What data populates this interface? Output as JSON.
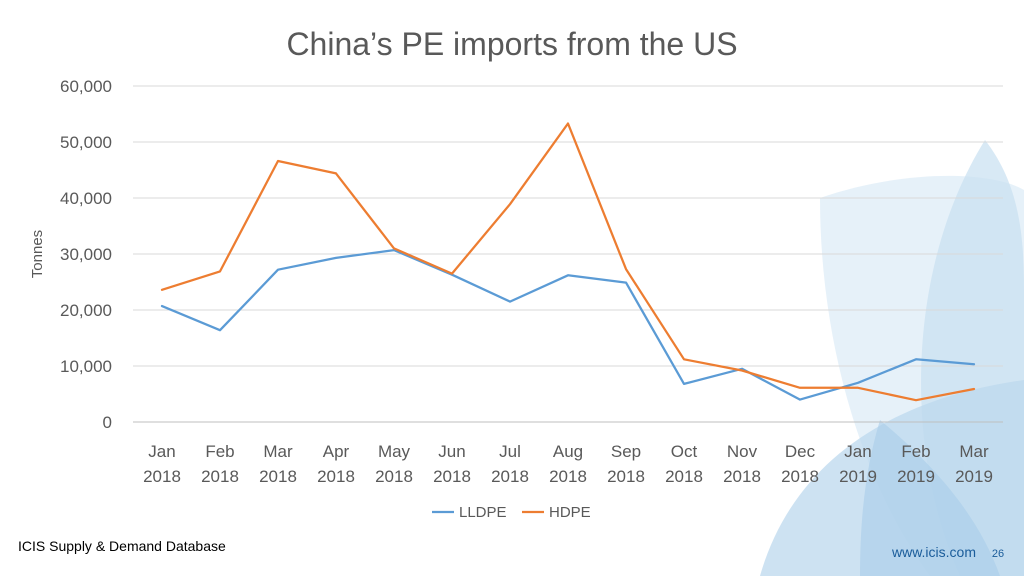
{
  "slide": {
    "source_label": "ICIS Supply & Demand Database",
    "website": "www.icis.com",
    "page_number": "26",
    "accent_color": "#1a5c9a"
  },
  "chart_data": {
    "type": "line",
    "title": "China’s PE imports from the US",
    "xlabel": "",
    "ylabel": "Tonnes",
    "ylim": [
      0,
      60000
    ],
    "y_ticks": [
      "0",
      "10,000",
      "20,000",
      "30,000",
      "40,000",
      "50,000",
      "60,000"
    ],
    "categories": [
      [
        "Jan",
        "2018"
      ],
      [
        "Feb",
        "2018"
      ],
      [
        "Mar",
        "2018"
      ],
      [
        "Apr",
        "2018"
      ],
      [
        "May",
        "2018"
      ],
      [
        "Jun",
        "2018"
      ],
      [
        "Jul",
        "2018"
      ],
      [
        "Aug",
        "2018"
      ],
      [
        "Sep",
        "2018"
      ],
      [
        "Oct",
        "2018"
      ],
      [
        "Nov",
        "2018"
      ],
      [
        "Dec",
        "2018"
      ],
      [
        "Jan",
        "2019"
      ],
      [
        "Feb",
        "2019"
      ],
      [
        "Mar",
        "2019"
      ]
    ],
    "series": [
      {
        "name": "LLDPE",
        "color": "#5b9bd5",
        "values": [
          20700,
          16400,
          27200,
          29300,
          30700,
          26300,
          21500,
          26200,
          24900,
          6800,
          9500,
          4000,
          7000,
          11200,
          10300
        ]
      },
      {
        "name": "HDPE",
        "color": "#ed7d31",
        "values": [
          23600,
          26900,
          46600,
          44400,
          31000,
          26500,
          38900,
          53300,
          27300,
          11200,
          9200,
          6100,
          6100,
          3900,
          5900
        ]
      }
    ],
    "grid": true,
    "legend_position": "bottom"
  }
}
